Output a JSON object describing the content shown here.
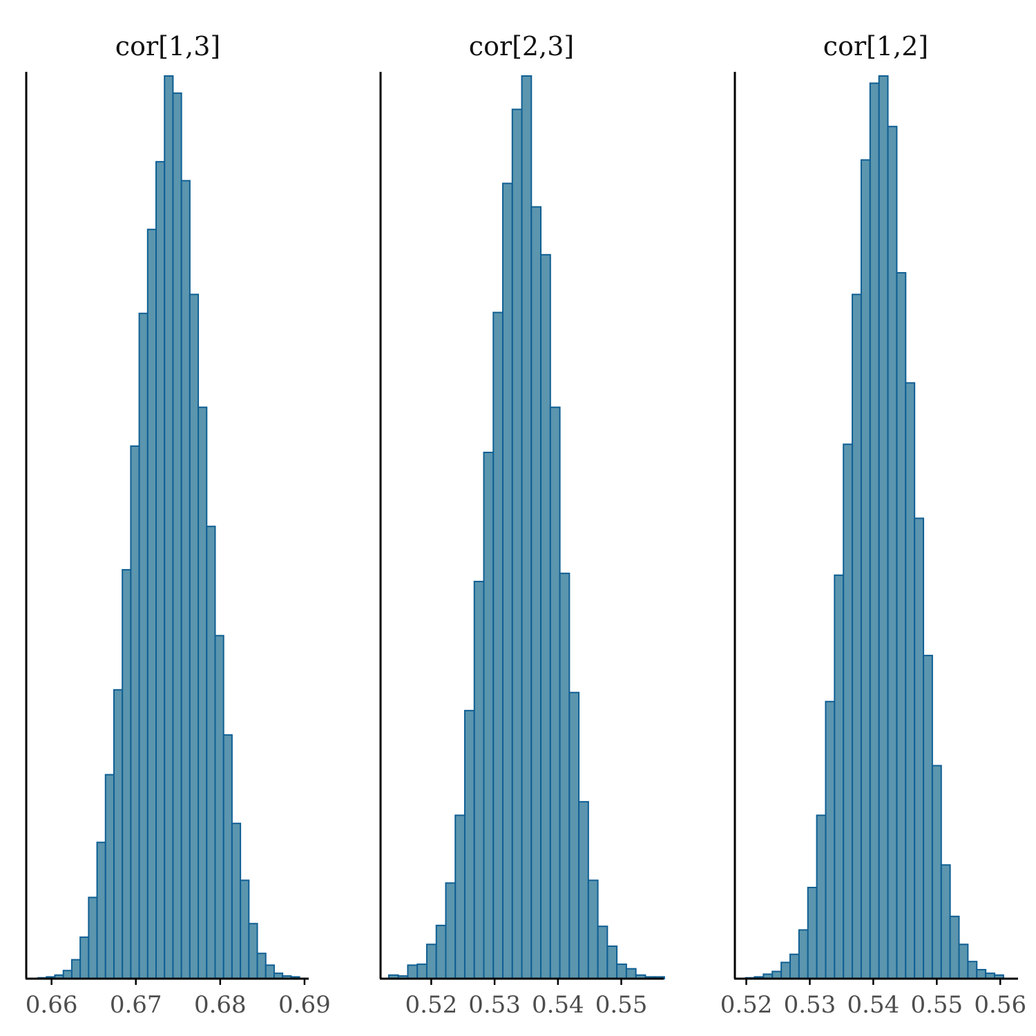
{
  "colors": {
    "bar_fill": "#5b95ae",
    "bar_stroke": "#0f5f93",
    "axis": "#000000",
    "tick_label": "#4d4d4d",
    "title": "#111111"
  },
  "chart_data": [
    {
      "type": "bar",
      "title": "cor[1,3]",
      "xlabel": "",
      "ylabel": "",
      "xlim": [
        0.657,
        0.6905
      ],
      "ylim": [
        0,
        1
      ],
      "xticks": [
        0.66,
        0.67,
        0.68,
        0.69
      ],
      "xtick_labels": [
        "0.66",
        "0.67",
        "0.68",
        "0.69"
      ],
      "bin_width": 0.001,
      "bin_start": 0.6584,
      "values": [
        0.001,
        0.002,
        0.004,
        0.009,
        0.021,
        0.046,
        0.09,
        0.151,
        0.226,
        0.32,
        0.453,
        0.59,
        0.737,
        0.83,
        0.905,
        1.0,
        0.981,
        0.884,
        0.758,
        0.633,
        0.501,
        0.38,
        0.27,
        0.172,
        0.109,
        0.061,
        0.028,
        0.015,
        0.006,
        0.003,
        0.002
      ]
    },
    {
      "type": "bar",
      "title": "cor[2,3]",
      "xlabel": "",
      "ylabel": "",
      "xlim": [
        0.512,
        0.5567
      ],
      "ylim": [
        0,
        1
      ],
      "xticks": [
        0.52,
        0.53,
        0.54,
        0.55
      ],
      "xtick_labels": [
        "0.52",
        "0.53",
        "0.54",
        "0.55"
      ],
      "bin_width": 0.0015,
      "bin_start": 0.5133,
      "values": [
        0.004,
        0.003,
        0.015,
        0.016,
        0.038,
        0.059,
        0.106,
        0.181,
        0.297,
        0.44,
        0.583,
        0.738,
        0.881,
        0.963,
        1.0,
        0.855,
        0.802,
        0.633,
        0.449,
        0.317,
        0.196,
        0.109,
        0.058,
        0.036,
        0.016,
        0.011,
        0.004,
        0.002,
        0.002
      ]
    },
    {
      "type": "bar",
      "title": "cor[1,2]",
      "xlabel": "",
      "ylabel": "",
      "xlim": [
        0.5182,
        0.5628
      ],
      "ylim": [
        0,
        1
      ],
      "xticks": [
        0.52,
        0.53,
        0.54,
        0.55,
        0.56
      ],
      "xtick_labels": [
        "0.52",
        "0.53",
        "0.54",
        "0.55",
        "0.56"
      ],
      "bin_width": 0.0014,
      "bin_start": 0.5199,
      "values": [
        0.001,
        0.002,
        0.005,
        0.008,
        0.018,
        0.027,
        0.054,
        0.101,
        0.181,
        0.307,
        0.447,
        0.592,
        0.758,
        0.907,
        0.992,
        1.0,
        0.944,
        0.782,
        0.66,
        0.51,
        0.358,
        0.236,
        0.126,
        0.069,
        0.038,
        0.019,
        0.01,
        0.006,
        0.004
      ]
    }
  ]
}
